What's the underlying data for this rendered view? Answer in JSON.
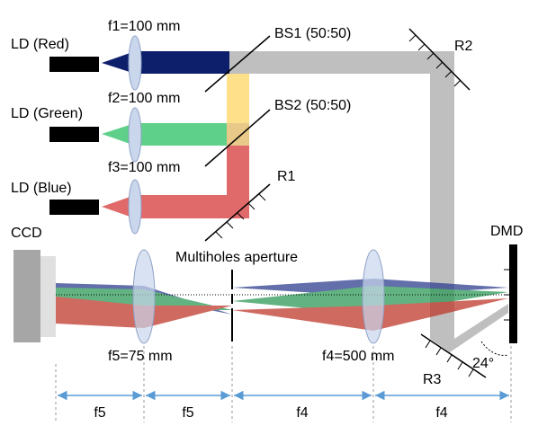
{
  "lasers": [
    "LD (Red)",
    "LD (Green)",
    "LD (Blue)"
  ],
  "lenses": [
    "f1=100 mm",
    "f2=100 mm",
    "f3=100 mm",
    "f5=75 mm",
    "f4=500 mm"
  ],
  "beam_splitters": [
    "BS1 (50:50)",
    "BS2 (50:50)"
  ],
  "mirrors": [
    "R1",
    "R2",
    "R3"
  ],
  "camera": "CCD",
  "modulator": "DMD",
  "aperture": "Multiholes aperture",
  "angle": "24°",
  "distances": [
    "f5",
    "f5",
    "f4",
    "f4"
  ]
}
